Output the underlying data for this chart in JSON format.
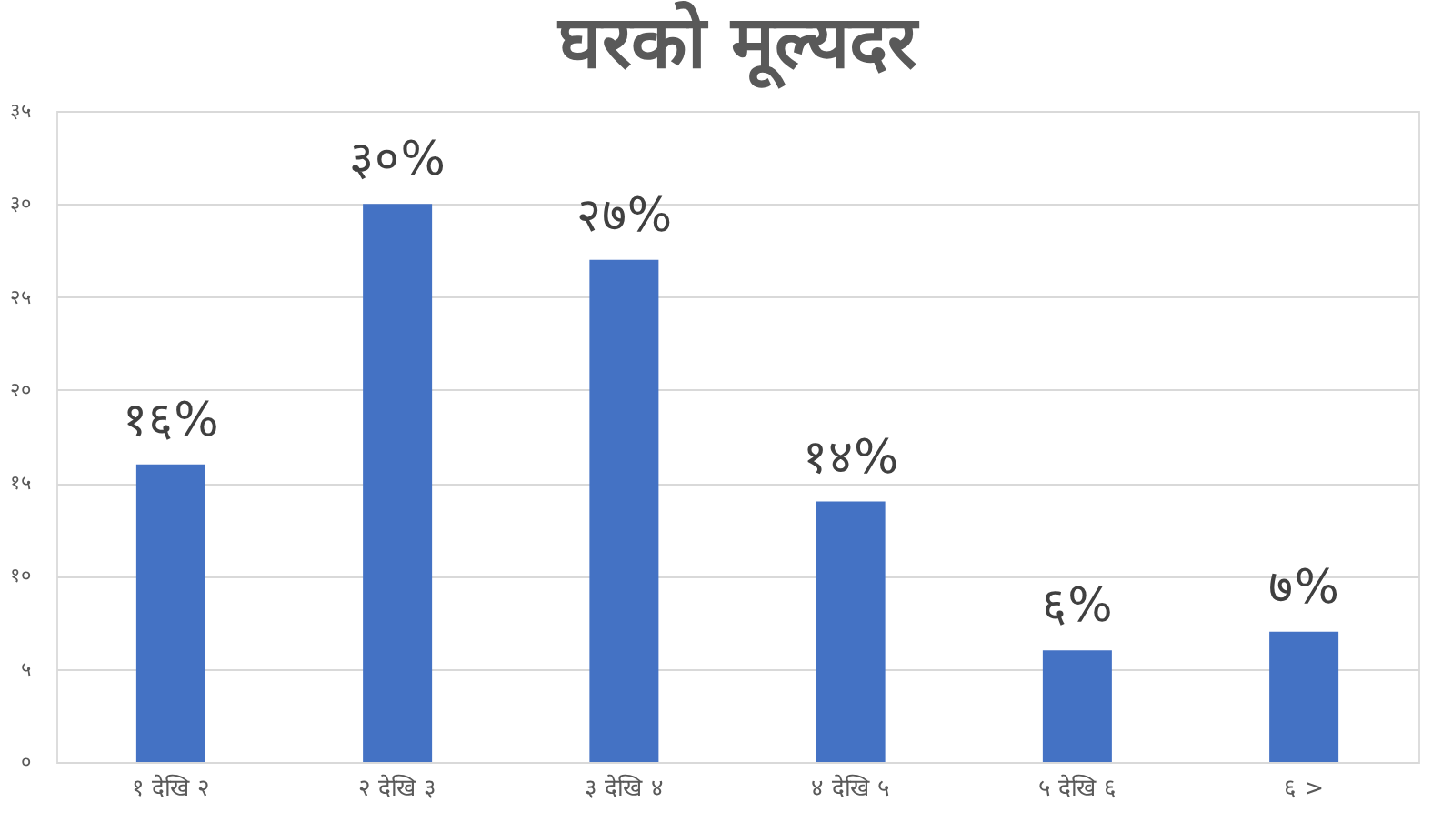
{
  "chart_data": {
    "type": "bar",
    "title": "घरको मूल्यदर",
    "categories": [
      "१ देखि २",
      "२ देखि ३",
      "३ देखि ४",
      "४ देखि ५",
      "५ देखि ६",
      "६ >"
    ],
    "values": [
      16,
      30,
      27,
      14,
      6,
      7
    ],
    "value_labels": [
      "१६%",
      "३०%",
      "२७%",
      "१४%",
      "६%",
      "७%"
    ],
    "color": "#4472c4",
    "ylim": [
      0,
      35
    ],
    "yticks": [
      {
        "value": 0,
        "label": "०"
      },
      {
        "value": 5,
        "label": "५"
      },
      {
        "value": 10,
        "label": "१०"
      },
      {
        "value": 15,
        "label": "१५"
      },
      {
        "value": 20,
        "label": "२०"
      },
      {
        "value": 25,
        "label": "२५"
      },
      {
        "value": 30,
        "label": "३०"
      },
      {
        "value": 35,
        "label": "३५"
      }
    ],
    "grid": "y"
  }
}
